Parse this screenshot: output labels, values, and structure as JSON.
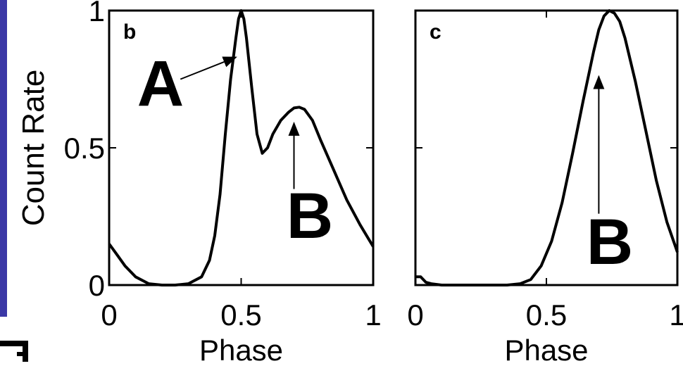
{
  "colors": {
    "accent_bar": "#3b38a6",
    "line": "#000000",
    "background": "#ffffff"
  },
  "ylabel": "Count Rate",
  "chart_data": [
    {
      "type": "line",
      "panel_label": "b",
      "xlabel": "Phase",
      "ylabel": "Count Rate",
      "xlim": [
        0,
        1
      ],
      "ylim": [
        0,
        1
      ],
      "x_ticks": [
        "0",
        "0.5",
        "1"
      ],
      "y_ticks": [
        "0",
        "0.5",
        "1"
      ],
      "grid": false,
      "series": [
        {
          "x": [
            0,
            0.03,
            0.06,
            0.1,
            0.15,
            0.2,
            0.25,
            0.3,
            0.35,
            0.38,
            0.4,
            0.42,
            0.44,
            0.46,
            0.48,
            0.49,
            0.5,
            0.51,
            0.52,
            0.54,
            0.56,
            0.58,
            0.6,
            0.62,
            0.65,
            0.68,
            0.7,
            0.72,
            0.74,
            0.77,
            0.8,
            0.85,
            0.9,
            0.95,
            1.0
          ],
          "y": [
            0.15,
            0.11,
            0.07,
            0.03,
            0.005,
            0.0,
            0.0,
            0.005,
            0.03,
            0.09,
            0.18,
            0.33,
            0.55,
            0.75,
            0.9,
            0.97,
            1.0,
            0.97,
            0.9,
            0.72,
            0.55,
            0.48,
            0.5,
            0.55,
            0.6,
            0.63,
            0.645,
            0.648,
            0.64,
            0.6,
            0.53,
            0.42,
            0.31,
            0.22,
            0.14
          ]
        }
      ],
      "annotations": [
        {
          "text": "A",
          "x_from": 0.27,
          "y_from": 0.75,
          "x_to": 0.48,
          "y_to": 0.83
        },
        {
          "text": "B",
          "x_from": 0.7,
          "y_from": 0.35,
          "x_to": 0.7,
          "y_to": 0.59
        }
      ]
    },
    {
      "type": "line",
      "panel_label": "c",
      "xlabel": "Phase",
      "xlim": [
        0,
        1
      ],
      "ylim": [
        0,
        1
      ],
      "x_ticks": [
        "0",
        "0.5",
        "1"
      ],
      "grid": false,
      "series": [
        {
          "x": [
            0,
            0.02,
            0.04,
            0.06,
            0.1,
            0.2,
            0.3,
            0.35,
            0.4,
            0.44,
            0.48,
            0.52,
            0.56,
            0.6,
            0.64,
            0.68,
            0.7,
            0.72,
            0.74,
            0.76,
            0.78,
            0.8,
            0.84,
            0.88,
            0.92,
            0.96,
            1.0
          ],
          "y": [
            0.03,
            0.03,
            0.01,
            0.005,
            0.0,
            0.0,
            0.0,
            0.0,
            0.005,
            0.02,
            0.07,
            0.16,
            0.3,
            0.48,
            0.67,
            0.85,
            0.93,
            0.98,
            1.0,
            0.99,
            0.96,
            0.9,
            0.74,
            0.56,
            0.38,
            0.23,
            0.12
          ]
        }
      ],
      "annotations": [
        {
          "text": "B",
          "x_from": 0.7,
          "y_from": 0.26,
          "x_to": 0.7,
          "y_to": 0.76
        }
      ]
    }
  ]
}
